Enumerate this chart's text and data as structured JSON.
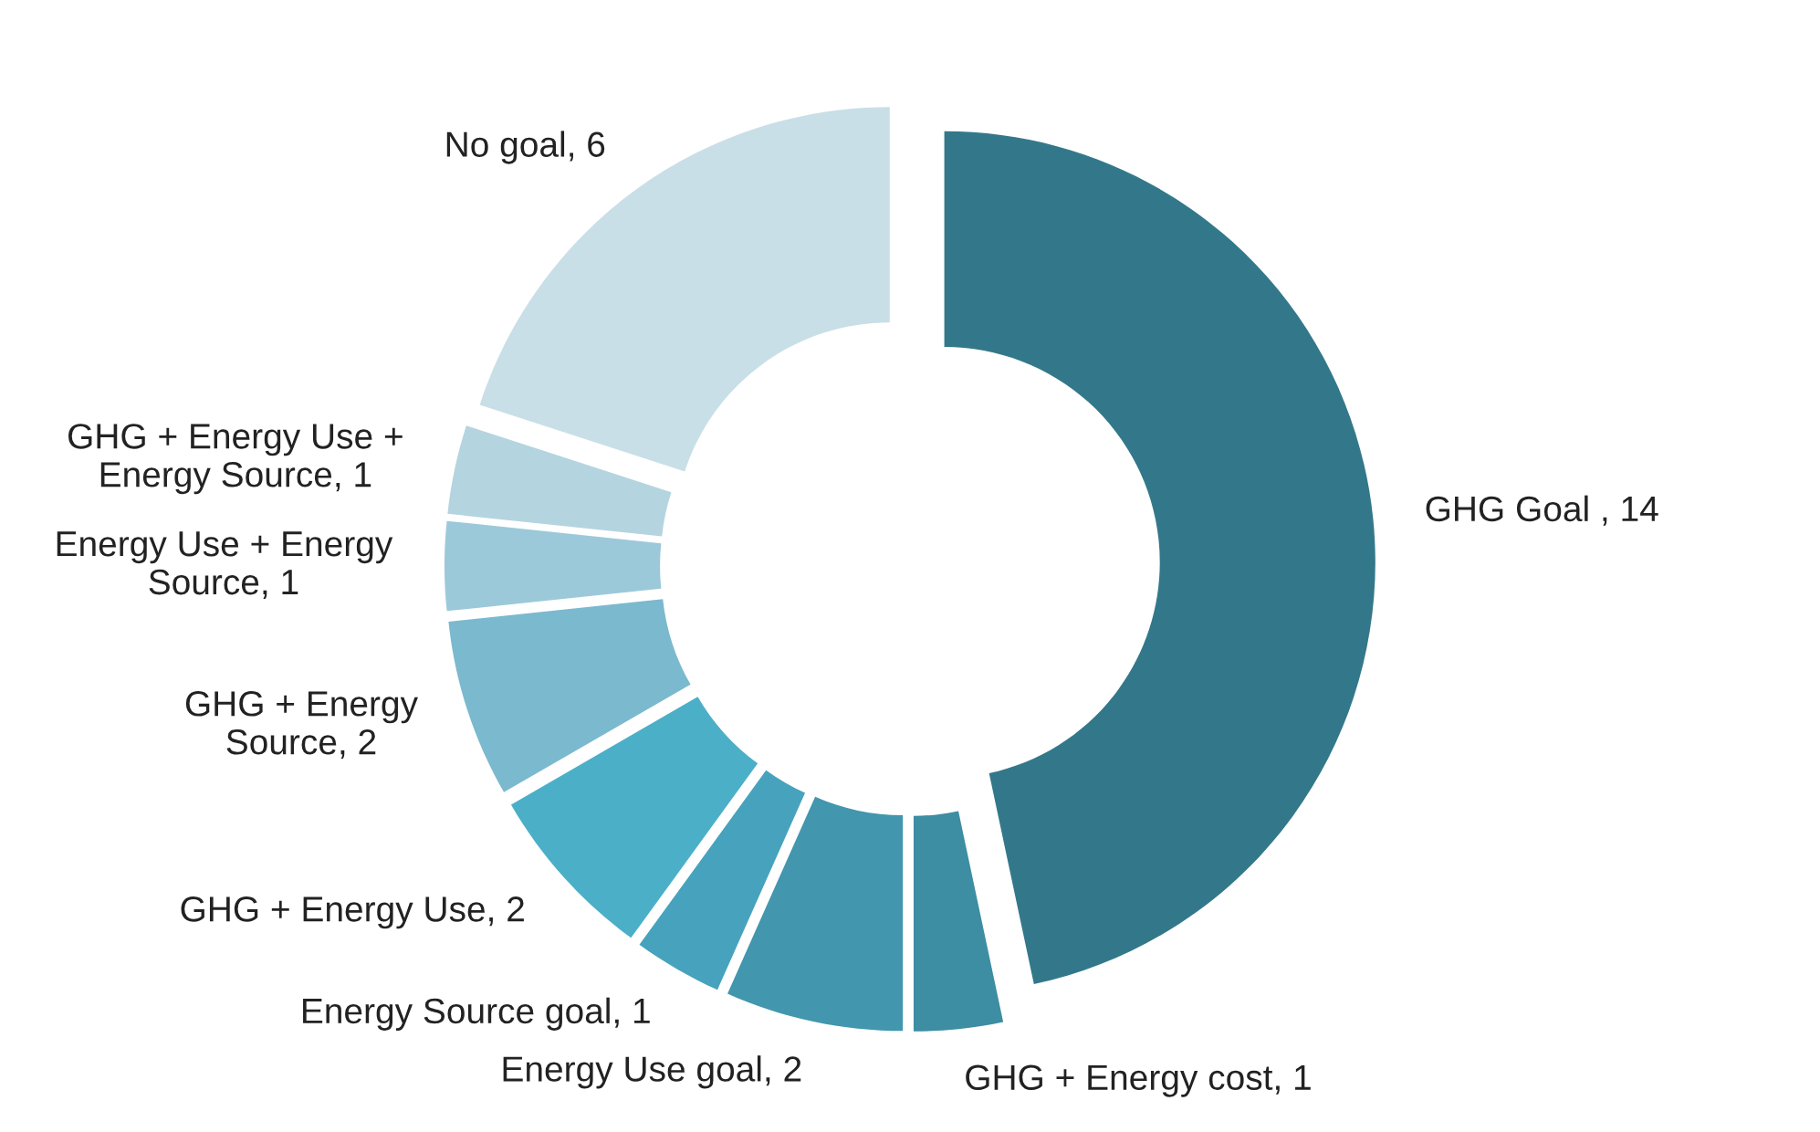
{
  "chart_data": {
    "type": "donut",
    "categories": [
      "GHG Goal , 14",
      "GHG + Energy cost, 1",
      "Energy Use goal, 2",
      "Energy Source goal, 1",
      "GHG + Energy Use, 2",
      "GHG + Energy\nSource, 2",
      "Energy Use + Energy\nSource, 1",
      "GHG + Energy Use +\nEnergy Source, 1",
      "No goal, 6"
    ],
    "values": [
      14,
      1,
      2,
      1,
      2,
      2,
      1,
      1,
      6
    ],
    "colors": [
      "#33788a",
      "#3d8da3",
      "#4296ae",
      "#47a3bd",
      "#4bafc8",
      "#7bb9cf",
      "#9cc9d9",
      "#b4d4e0",
      "#c9dfe7"
    ]
  }
}
